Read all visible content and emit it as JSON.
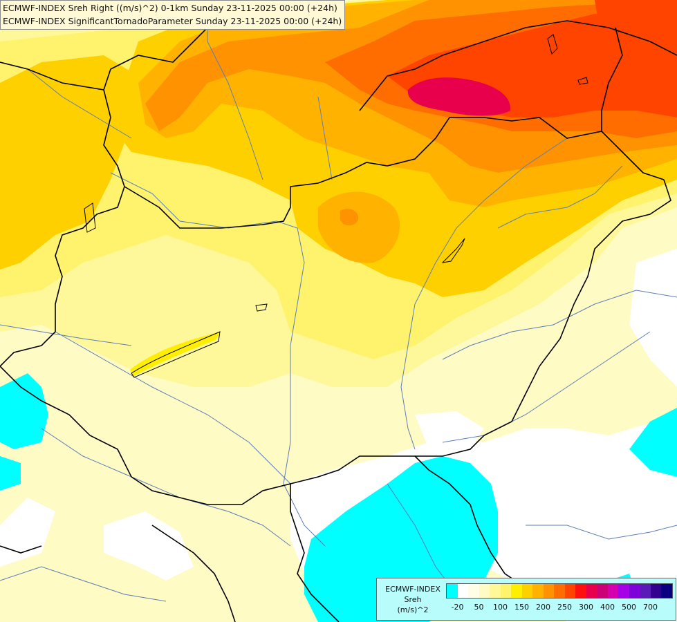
{
  "title_lines": [
    "ECMWF-INDEX Sreh Right ((m/s)^2) 0-1km Sunday 23-11-2025 00:00 (+24h)",
    "ECMWF-INDEX SignificantTornadoParameter Sunday 23-11-2025 00:00 (+24h)"
  ],
  "legend": {
    "title": [
      "ECMWF-INDEX",
      "Sreh",
      "(m/s)^2"
    ],
    "colors": [
      "#00ffff",
      "#ffffff",
      "#fffde6",
      "#fffbc4",
      "#fff89a",
      "#fff36e",
      "#ffee00",
      "#ffd000",
      "#ffb300",
      "#ff9200",
      "#ff6c00",
      "#ff4400",
      "#ff1010",
      "#e8004c",
      "#cc0077",
      "#d400b0",
      "#a600e6",
      "#7f00d8",
      "#5a1ab8",
      "#32008e",
      "#0a0080"
    ],
    "tick_labels": [
      "-20",
      "50",
      "100",
      "150",
      "200",
      "250",
      "300",
      "400",
      "500",
      "700"
    ]
  },
  "colors": {
    "cyan": "#00ffff",
    "white": "#ffffff",
    "pale_yellow": "#fffbc4",
    "yellow": "#fff36e",
    "gold": "#ffd000",
    "orange": "#ff9200",
    "red_orange": "#ff4400",
    "magenta": "#e8004c",
    "border": "#000000",
    "river": "#5b7db6"
  }
}
